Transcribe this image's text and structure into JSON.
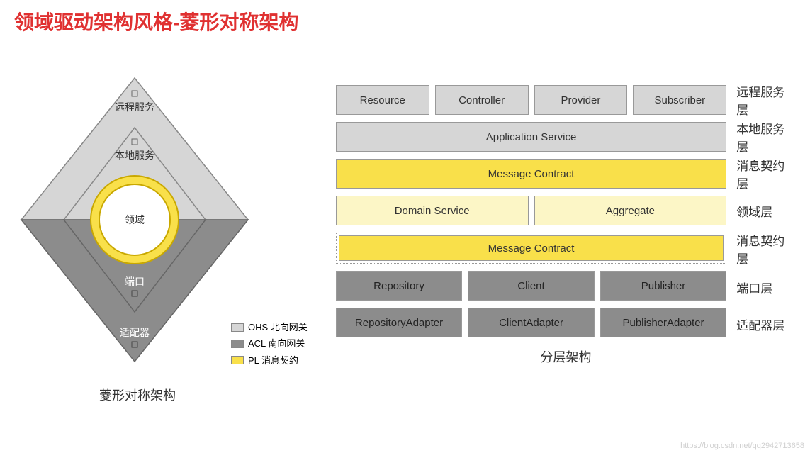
{
  "title": "领域驱动架构风格-菱形对称架构",
  "colors": {
    "title": "#e03131",
    "ohs_light": "#d6d6d6",
    "acl_dark": "#8c8c8c",
    "pl_yellow": "#f9e04a",
    "pl_light": "#fcf6c6",
    "box_border": "#999999",
    "text": "#333333",
    "bg": "#ffffff",
    "circle_ring": "#e8c93a",
    "circle_fill": "#ffffff"
  },
  "diamond": {
    "caption": "菱形对称架构",
    "labels": {
      "remote_service": "远程服务",
      "local_service": "本地服务",
      "domain": "领域",
      "port": "端口",
      "adapter": "适配器"
    },
    "legend": [
      {
        "swatch": "#d6d6d6",
        "label": "OHS 北向网关"
      },
      {
        "swatch": "#8c8c8c",
        "label": "ACL 南向网关"
      },
      {
        "swatch": "#f9e04a",
        "label": "PL  消息契约"
      }
    ]
  },
  "layers": {
    "caption": "分层架构",
    "rows": [
      {
        "label": "远程服务层",
        "bg": "#d6d6d6",
        "style": "solid",
        "boxes": [
          "Resource",
          "Controller",
          "Provider",
          "Subscriber"
        ]
      },
      {
        "label": "本地服务层",
        "bg": "#d6d6d6",
        "style": "solid",
        "boxes": [
          "Application Service"
        ]
      },
      {
        "label": "消息契约层",
        "bg": "#f9e04a",
        "style": "solid",
        "boxes": [
          "Message Contract"
        ]
      },
      {
        "label": "领域层",
        "bg": "#fcf6c6",
        "style": "solid",
        "boxes": [
          "Domain Service",
          "Aggregate"
        ]
      },
      {
        "label": "消息契约层",
        "bg": "#f9e04a",
        "style": "dotted",
        "boxes": [
          "Message Contract"
        ]
      },
      {
        "label": "端口层",
        "bg": "#8c8c8c",
        "style": "solid",
        "boxes": [
          "Repository",
          "Client",
          "Publisher"
        ]
      },
      {
        "label": "适配器层",
        "bg": "#8c8c8c",
        "style": "solid",
        "boxes": [
          "RepositoryAdapter",
          "ClientAdapter",
          "PublisherAdapter"
        ]
      }
    ]
  },
  "watermark": "https://blog.csdn.net/qq2942713658"
}
